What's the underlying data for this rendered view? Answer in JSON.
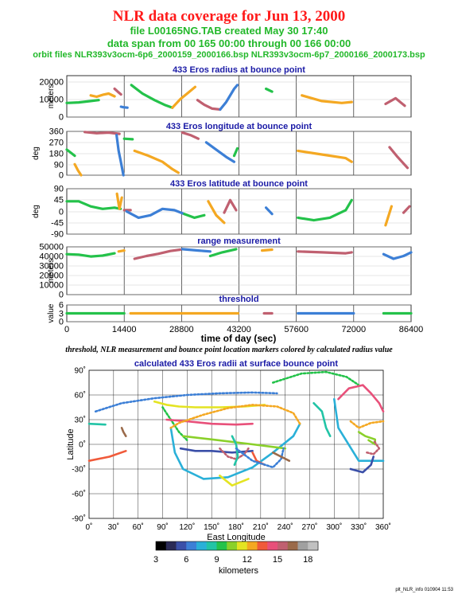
{
  "header": {
    "title": "NLR data coverage for Jun 13, 2000",
    "file_line": "file L00165NG.TAB created May 30 17:40",
    "span_line": "data span from 00 165 00:00 through 00 166 00:00",
    "orbit_line": "orbit files NLR393v3ocm-6p6_2000159_2000166.bsp NLR393v3ocm-6p7_2000166_2000173.bsp"
  },
  "caption": "threshold, NLR measurement and bounce point location markers colored by calculated radius value",
  "footer": "plt_NLR_info 010904 11:53",
  "colors": {
    "title": "#ff1a1a",
    "subtitle": "#22b82a",
    "panel_title": "#1a1aa6",
    "scale": [
      "#000000",
      "#2a2a55",
      "#3a4fa8",
      "#3c7fd6",
      "#2ab0d8",
      "#22c4a6",
      "#24c24a",
      "#8ad02a",
      "#e4e422",
      "#f4a822",
      "#f05a3a",
      "#e8507a",
      "#c06070",
      "#9a6a4a",
      "#a0a0a0",
      "#c0c0c0"
    ]
  },
  "time_axis": {
    "label": "time of day (sec)",
    "ticks": [
      "0",
      "14400",
      "28800",
      "43200",
      "57600",
      "72000",
      "86400"
    ]
  },
  "chart_data": [
    {
      "type": "scatter",
      "id": "radius",
      "title": "433 Eros radius at bounce point",
      "ylabel": "meters",
      "yticks": [
        "20000",
        "10000",
        "0"
      ],
      "ylim": [
        0,
        22000
      ],
      "xlim": [
        0,
        86400
      ],
      "segments": [
        {
          "x": [
            0,
            3000,
            6000,
            8000
          ],
          "y": [
            7500,
            7800,
            8500,
            9000
          ]
        },
        {
          "x": [
            6000,
            7500,
            9000,
            10500,
            12000
          ],
          "y": [
            11500,
            10800,
            11800,
            12500,
            11000
          ]
        },
        {
          "x": [
            12000,
            12800,
            13600
          ],
          "y": [
            15000,
            13500,
            12000
          ]
        },
        {
          "x": [
            13600,
            14200,
            15200
          ],
          "y": [
            5500,
            5200,
            5000
          ]
        },
        {
          "x": [
            16200,
            19000,
            22000,
            24500,
            26500
          ],
          "y": [
            17000,
            12500,
            9000,
            6500,
            5000
          ]
        },
        {
          "x": [
            26500,
            28500,
            30500,
            32200
          ],
          "y": [
            5000,
            9500,
            13000,
            16000
          ]
        },
        {
          "x": [
            32800,
            34500,
            36500,
            38500
          ],
          "y": [
            9000,
            6500,
            4500,
            4000
          ]
        },
        {
          "x": [
            38500,
            40000,
            42000,
            42800
          ],
          "y": [
            4000,
            8000,
            15000,
            17000
          ]
        },
        {
          "x": [
            50000,
            51500
          ],
          "y": [
            15000,
            13500
          ]
        },
        {
          "x": [
            59000,
            64000,
            69000,
            71500
          ],
          "y": [
            11500,
            8500,
            7500,
            8000
          ]
        },
        {
          "x": [
            80000,
            82500,
            84800
          ],
          "y": [
            7000,
            10000,
            6000
          ]
        }
      ]
    },
    {
      "type": "scatter",
      "id": "longitude",
      "title": "433 Eros longitude at bounce point",
      "ylabel": "deg",
      "yticks": [
        "360",
        "270",
        "180",
        "90",
        "0"
      ],
      "ylim": [
        0,
        360
      ],
      "xlim": [
        0,
        86400
      ],
      "segments": [
        {
          "x": [
            0,
            1200,
            2000
          ],
          "y": [
            210,
            180,
            160
          ]
        },
        {
          "x": [
            2000,
            2800,
            3600
          ],
          "y": [
            90,
            40,
            0
          ]
        },
        {
          "x": [
            4500,
            7500,
            10500,
            13200
          ],
          "y": [
            355,
            345,
            350,
            340
          ]
        },
        {
          "x": [
            12500,
            13000,
            13500,
            14200
          ],
          "y": [
            330,
            200,
            120,
            0
          ]
        },
        {
          "x": [
            14400,
            16500
          ],
          "y": [
            300,
            295
          ]
        },
        {
          "x": [
            17000,
            20500,
            24000,
            26500,
            28000
          ],
          "y": [
            200,
            160,
            110,
            50,
            20
          ]
        },
        {
          "x": [
            29000,
            31000,
            33000
          ],
          "y": [
            350,
            330,
            300
          ]
        },
        {
          "x": [
            35000,
            37500,
            40000,
            42000
          ],
          "y": [
            270,
            210,
            150,
            110
          ]
        },
        {
          "x": [
            42000,
            42800
          ],
          "y": [
            160,
            220
          ]
        },
        {
          "x": [
            58000,
            64000,
            70000,
            71500
          ],
          "y": [
            200,
            170,
            140,
            110
          ]
        },
        {
          "x": [
            81000,
            83000,
            85500
          ],
          "y": [
            230,
            150,
            60
          ]
        }
      ]
    },
    {
      "type": "scatter",
      "id": "latitude",
      "title": "433 Eros latitude at bounce point",
      "ylabel": "deg",
      "yticks": [
        "90",
        "45",
        "0",
        "-45",
        "-90"
      ],
      "ylim": [
        -90,
        90
      ],
      "xlim": [
        0,
        86400
      ],
      "segments": [
        {
          "x": [
            0,
            3000,
            6000,
            9000,
            12000,
            13500
          ],
          "y": [
            40,
            40,
            20,
            10,
            15,
            10
          ]
        },
        {
          "x": [
            12600,
            13200,
            13800
          ],
          "y": [
            70,
            10,
            55
          ]
        },
        {
          "x": [
            14400,
            16000
          ],
          "y": [
            5,
            5
          ]
        },
        {
          "x": [
            15000,
            18000,
            21000,
            24000,
            27000,
            29500
          ],
          "y": [
            0,
            -25,
            -15,
            10,
            5,
            -10
          ]
        },
        {
          "x": [
            29500,
            32000,
            34500
          ],
          "y": [
            -10,
            -25,
            -15
          ]
        },
        {
          "x": [
            35500,
            37500,
            39500
          ],
          "y": [
            40,
            -15,
            -45
          ]
        },
        {
          "x": [
            39500,
            41000,
            42500
          ],
          "y": [
            -5,
            45,
            5
          ]
        },
        {
          "x": [
            50000,
            51500
          ],
          "y": [
            15,
            -10
          ]
        },
        {
          "x": [
            58000,
            62000,
            66000,
            70000,
            71500
          ],
          "y": [
            -25,
            -35,
            -25,
            5,
            45
          ]
        },
        {
          "x": [
            80000,
            81500
          ],
          "y": [
            -55,
            20
          ]
        },
        {
          "x": [
            84500,
            86000
          ],
          "y": [
            -5,
            20
          ]
        }
      ]
    },
    {
      "type": "scatter",
      "id": "range",
      "title": "range measurement",
      "ylabel": "meters",
      "yticks": [
        "50000",
        "40000",
        "30000",
        "20000",
        "10000",
        "0"
      ],
      "ylim": [
        0,
        52000
      ],
      "xlim": [
        0,
        86400
      ],
      "segments": [
        {
          "x": [
            0,
            3000,
            6000,
            9000,
            12000
          ],
          "y": [
            44000,
            43500,
            41500,
            42500,
            45000
          ]
        },
        {
          "x": [
            13000,
            14400
          ],
          "y": [
            47000,
            48000
          ]
        },
        {
          "x": [
            17000,
            20000,
            23000,
            26000,
            28500
          ],
          "y": [
            39000,
            42000,
            44500,
            47500,
            49000
          ]
        },
        {
          "x": [
            29000,
            33000,
            36000
          ],
          "y": [
            49500,
            48000,
            47000
          ]
        },
        {
          "x": [
            36000,
            39000,
            42500
          ],
          "y": [
            42000,
            46000,
            49500
          ]
        },
        {
          "x": [
            49000,
            51500
          ],
          "y": [
            48000,
            49000
          ]
        },
        {
          "x": [
            58000,
            64000,
            70000,
            71500
          ],
          "y": [
            47000,
            46000,
            45000,
            46000
          ]
        },
        {
          "x": [
            79500,
            82000,
            84500,
            86400
          ],
          "y": [
            44000,
            39000,
            42000,
            46000
          ]
        }
      ]
    },
    {
      "type": "scatter",
      "id": "threshold",
      "title": "threshold",
      "ylabel": "value",
      "yticks": [
        "6",
        "3",
        "0"
      ],
      "ylim": [
        0,
        6
      ],
      "xlim": [
        0,
        86400
      ],
      "segments": [
        {
          "x": [
            0,
            14400
          ],
          "y": [
            3,
            3
          ]
        },
        {
          "x": [
            16000,
            43000
          ],
          "y": [
            3,
            3
          ]
        },
        {
          "x": [
            49500,
            51500
          ],
          "y": [
            3,
            3
          ]
        },
        {
          "x": [
            58000,
            72000
          ],
          "y": [
            3,
            3
          ]
        },
        {
          "x": [
            79500,
            86400
          ],
          "y": [
            3,
            3
          ]
        }
      ]
    },
    {
      "type": "scatter",
      "id": "map",
      "title": "calculated 433 Eros radii at surface bounce point",
      "xlabel": "East Longitude",
      "ylabel": "Latitude",
      "xticks": [
        "0˚",
        "30˚",
        "60˚",
        "90˚",
        "120˚",
        "150˚",
        "180˚",
        "210˚",
        "240˚",
        "270˚",
        "300˚",
        "330˚",
        "360˚"
      ],
      "yticks": [
        "90˚",
        "60˚",
        "30˚",
        "0˚",
        "-30˚",
        "-60˚",
        "-90˚"
      ],
      "xlim": [
        0,
        360
      ],
      "ylim": [
        -90,
        90
      ],
      "tracks": [
        {
          "lon": [
            0,
            20
          ],
          "lat": [
            25,
            24
          ]
        },
        {
          "lon": [
            0,
            25,
            45
          ],
          "lat": [
            -20,
            -15,
            -8
          ]
        },
        {
          "lon": [
            8,
            40,
            80,
            120,
            160,
            200,
            230
          ],
          "lat": [
            40,
            50,
            56,
            60,
            62,
            63,
            62
          ]
        },
        {
          "lon": [
            80,
            95,
            110,
            130,
            160,
            190,
            215
          ],
          "lat": [
            52,
            48,
            46,
            45,
            45,
            46,
            48
          ]
        },
        {
          "lon": [
            40,
            42,
            45
          ],
          "lat": [
            20,
            15,
            10
          ]
        },
        {
          "lon": [
            90,
            100,
            110,
            120
          ],
          "lat": [
            45,
            30,
            15,
            5
          ]
        },
        {
          "lon": [
            95,
            120,
            150,
            180,
            200
          ],
          "lat": [
            30,
            28,
            25,
            24,
            25
          ]
        },
        {
          "lon": [
            100,
            105,
            115,
            140,
            170,
            200,
            225,
            250,
            258
          ],
          "lat": [
            20,
            -10,
            -30,
            -42,
            -40,
            -28,
            -10,
            10,
            25
          ]
        },
        {
          "lon": [
            258,
            250,
            230,
            200,
            170,
            140,
            110,
            100
          ],
          "lat": [
            25,
            38,
            46,
            48,
            44,
            36,
            26,
            20
          ]
        },
        {
          "lon": [
            112,
            130,
            150,
            175,
            200
          ],
          "lat": [
            -5,
            -8,
            -8,
            -10,
            -8
          ]
        },
        {
          "lon": [
            115,
            150,
            200,
            240
          ],
          "lat": [
            10,
            6,
            0,
            -5
          ]
        },
        {
          "lon": [
            160,
            170,
            180,
            190,
            195
          ],
          "lat": [
            -5,
            -15,
            -18,
            -12,
            -5
          ]
        },
        {
          "lon": [
            175,
            180,
            182,
            178
          ],
          "lat": [
            10,
            0,
            -15,
            -25
          ]
        },
        {
          "lon": [
            200,
            205,
            215
          ],
          "lat": [
            -10,
            -20,
            -25
          ]
        },
        {
          "lon": [
            180,
            200,
            225,
            235,
            238
          ],
          "lat": [
            -5,
            -20,
            -28,
            -18,
            -5
          ]
        },
        {
          "lon": [
            160,
            175,
            195
          ],
          "lat": [
            -38,
            -50,
            -42
          ]
        },
        {
          "lon": [
            225,
            235,
            245
          ],
          "lat": [
            -10,
            -15,
            -20
          ]
        },
        {
          "lon": [
            225,
            260,
            290,
            315,
            330
          ],
          "lat": [
            75,
            86,
            88,
            82,
            72
          ]
        },
        {
          "lon": [
            305,
            310,
            318,
            335,
            345,
            355,
            360
          ],
          "lat": [
            55,
            60,
            68,
            72,
            62,
            50,
            40
          ]
        },
        {
          "lon": [
            300,
            305,
            330,
            360
          ],
          "lat": [
            55,
            20,
            -20,
            -20
          ]
        },
        {
          "lon": [
            320,
            330,
            345,
            360
          ],
          "lat": [
            28,
            20,
            26,
            28
          ]
        },
        {
          "lon": [
            320,
            335,
            345,
            348
          ],
          "lat": [
            -30,
            -34,
            -25,
            -15
          ]
        },
        {
          "lon": [
            330,
            338,
            350,
            350,
            342
          ],
          "lat": [
            15,
            10,
            6,
            0,
            5
          ]
        },
        {
          "lon": [
            340,
            348,
            355,
            348
          ],
          "lat": [
            -10,
            -12,
            -5,
            5
          ]
        },
        {
          "lon": [
            275,
            285,
            290,
            295
          ],
          "lat": [
            50,
            40,
            20,
            10
          ]
        }
      ]
    }
  ],
  "colorbar": {
    "label": "kilometers",
    "ticks": [
      "3",
      "6",
      "9",
      "12",
      "15",
      "18"
    ],
    "range": [
      3,
      19
    ]
  }
}
